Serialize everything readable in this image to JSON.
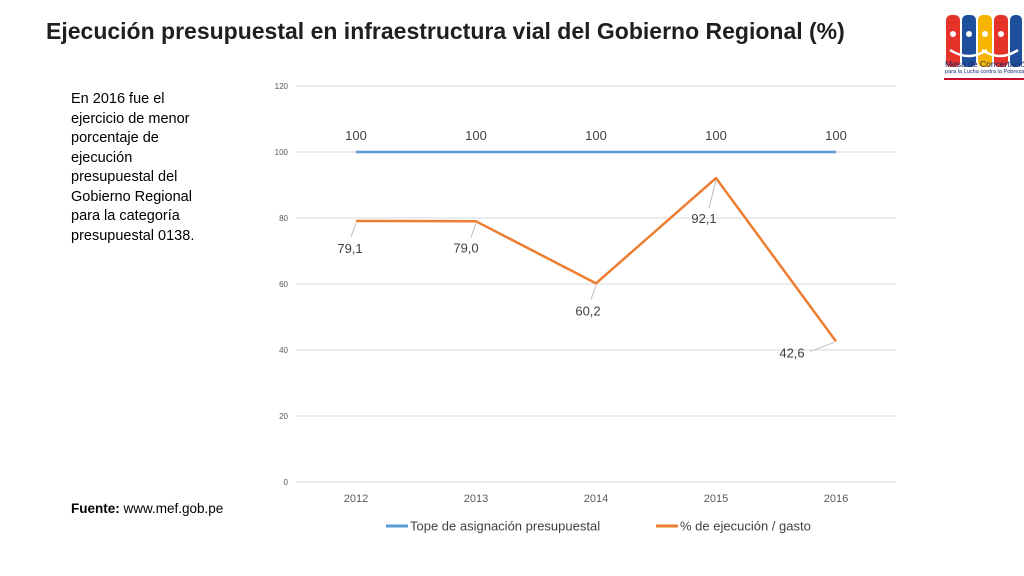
{
  "header": {
    "title": "Ejecución presupuestal en infraestructura vial del Gobierno Regional (%)"
  },
  "note": {
    "text": "En 2016 fue el ejercicio de menor porcentaje de ejecución presupuestal del Gobierno Regional para la categoría presupuestal 0138."
  },
  "source": {
    "label": "Fuente:",
    "value": "www.mef.gob.pe"
  },
  "logo": {
    "line1": "Mesa de Concertación",
    "line2": "para la Lucha contra la Pobreza"
  },
  "chart_data": {
    "type": "line",
    "categories": [
      "2012",
      "2013",
      "2014",
      "2015",
      "2016"
    ],
    "ylim": [
      0,
      120
    ],
    "yticks": [
      0,
      20,
      40,
      60,
      80,
      100,
      120
    ],
    "grid": true,
    "legend": "bottom",
    "series": [
      {
        "name": "Tope de asignación presupuestal",
        "values": [
          100,
          100,
          100,
          100,
          100
        ],
        "labels": [
          "100",
          "100",
          "100",
          "100",
          "100"
        ],
        "color": "#5b9bd5"
      },
      {
        "name": "% de ejecución / gasto",
        "values": [
          79.1,
          79.0,
          60.2,
          92.1,
          42.6
        ],
        "labels": [
          "79,1",
          "79,0",
          "60,2",
          "92,1",
          "42,6"
        ],
        "color": "#ed7d31"
      }
    ]
  }
}
